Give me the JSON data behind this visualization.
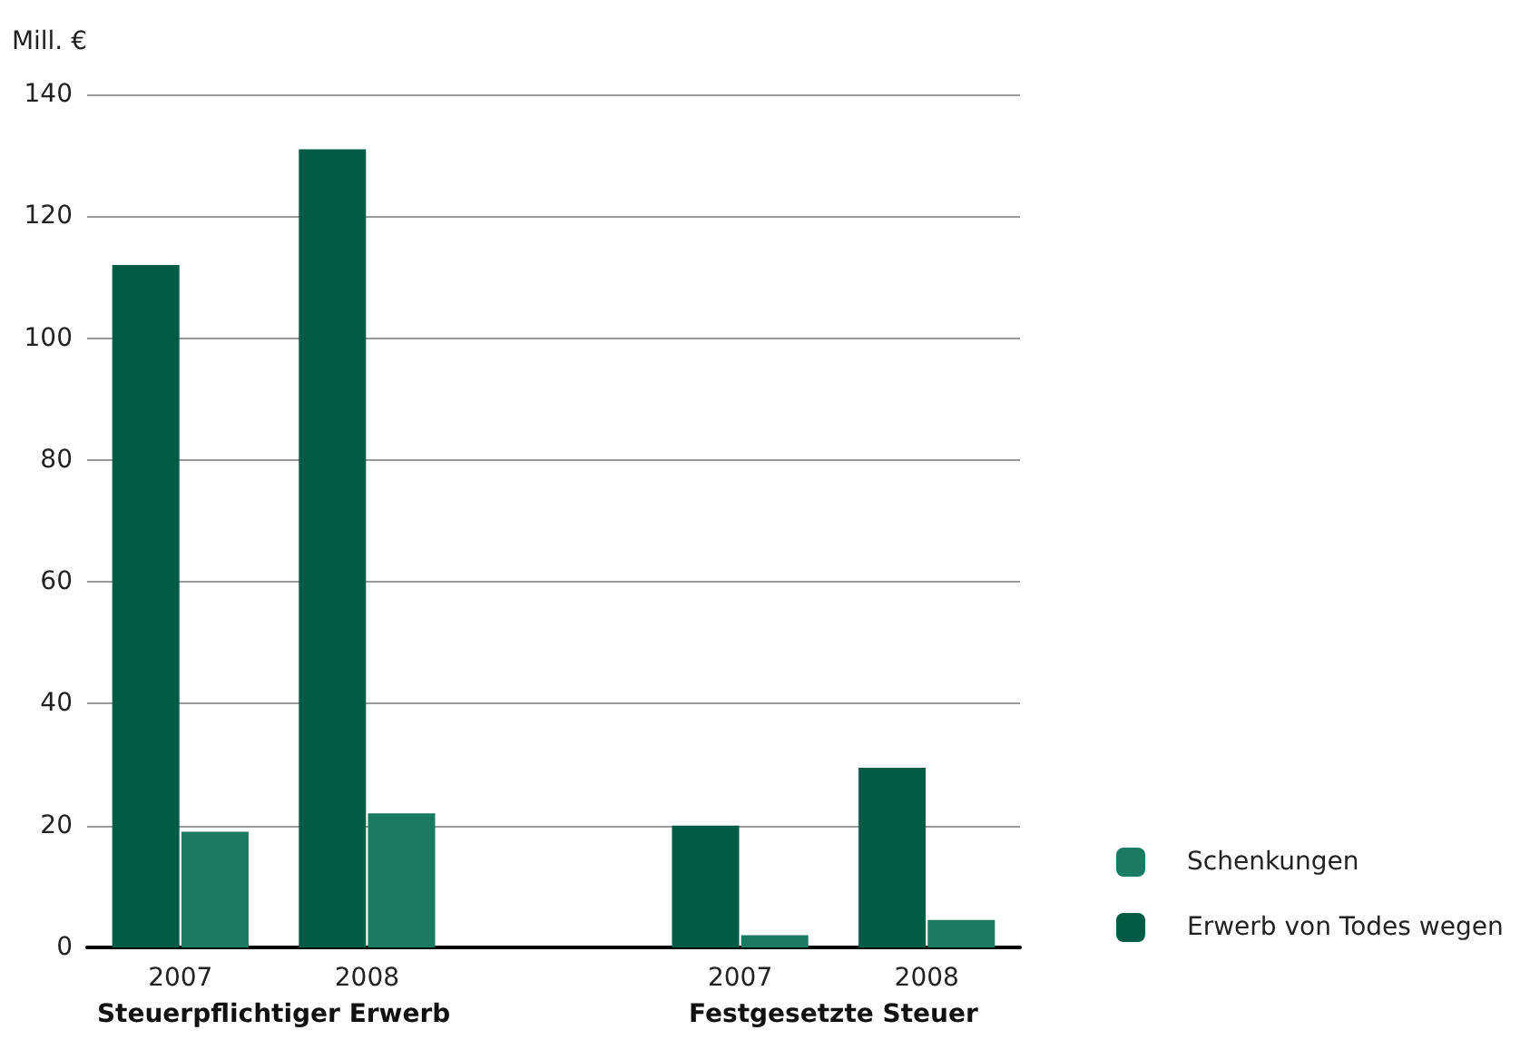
{
  "chart_data": {
    "type": "bar",
    "ylabel": "Mill. €",
    "categories": [
      "2007",
      "2008",
      null,
      "2007",
      "2008"
    ],
    "series": [
      {
        "name": "Erwerb von Todes wegen",
        "color": "#005c45",
        "values": [
          112,
          131,
          null,
          20,
          29.5
        ]
      },
      {
        "name": "Schenkungen",
        "color": "#1a7a62",
        "values": [
          19,
          22,
          null,
          2,
          4.5
        ]
      }
    ],
    "ylim": [
      0,
      140
    ],
    "yticks": [
      0,
      20,
      40,
      60,
      80,
      100,
      120,
      140
    ],
    "grid": "y",
    "legend": "bottom right",
    "annotations": [
      "Steuerpflichtiger Erwerb",
      "Festgesetzte Steuer"
    ]
  }
}
